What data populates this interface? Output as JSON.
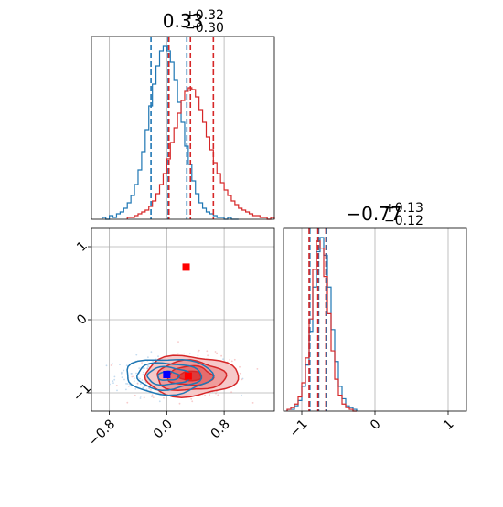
{
  "chart_data": [
    {
      "panel": "hist-param-1",
      "type": "histogram",
      "title": {
        "value": "0.33",
        "upper": "+0.32",
        "lower": "−0.30"
      },
      "xlim": [
        -1.05,
        1.5
      ],
      "x_ticks": [],
      "y_ticks": [],
      "grid": true,
      "series": [
        {
          "color": "#1f77b4",
          "bin_edges": [
            -0.9,
            -0.85,
            -0.8,
            -0.75,
            -0.7,
            -0.65,
            -0.6,
            -0.55,
            -0.5,
            -0.45,
            -0.4,
            -0.35,
            -0.3,
            -0.25,
            -0.2,
            -0.15,
            -0.1,
            -0.05,
            0.0,
            0.05,
            0.1,
            0.15,
            0.2,
            0.25,
            0.3,
            0.35,
            0.4,
            0.45,
            0.5,
            0.55,
            0.6,
            0.65,
            0.7,
            0.75,
            0.8,
            0.85,
            0.9,
            0.95,
            1.0
          ],
          "counts": [
            1,
            0,
            2,
            1,
            3,
            4,
            6,
            9,
            13,
            19,
            27,
            37,
            49,
            62,
            74,
            84,
            92,
            95,
            92,
            86,
            76,
            64,
            53,
            40,
            30,
            21,
            14,
            9,
            6,
            4,
            3,
            2,
            1,
            1,
            0,
            1,
            0,
            0
          ],
          "quantiles": [
            -0.22,
            0.02,
            0.28
          ]
        },
        {
          "color": "#d62728",
          "bin_edges": [
            -0.55,
            -0.5,
            -0.45,
            -0.4,
            -0.35,
            -0.3,
            -0.25,
            -0.2,
            -0.15,
            -0.1,
            -0.05,
            0.0,
            0.05,
            0.1,
            0.15,
            0.2,
            0.25,
            0.3,
            0.35,
            0.4,
            0.45,
            0.5,
            0.55,
            0.6,
            0.65,
            0.7,
            0.75,
            0.8,
            0.85,
            0.9,
            0.95,
            1.0,
            1.05,
            1.1,
            1.15,
            1.2,
            1.25,
            1.3,
            1.35,
            1.4,
            1.45,
            1.5
          ],
          "counts": [
            1,
            1,
            2,
            3,
            4,
            5,
            7,
            10,
            14,
            19,
            25,
            33,
            42,
            50,
            58,
            65,
            70,
            72,
            71,
            67,
            60,
            53,
            45,
            38,
            31,
            25,
            20,
            16,
            13,
            10,
            8,
            6,
            5,
            4,
            3,
            2,
            2,
            1,
            1,
            0,
            1
          ],
          "quantiles": [
            0.03,
            0.33,
            0.65
          ]
        }
      ]
    },
    {
      "panel": "contour-param-1-vs-param-2",
      "type": "scatter",
      "xlim": [
        -1.05,
        1.5
      ],
      "ylim": [
        -1.25,
        1.25
      ],
      "x_ticks": [
        "−0.8",
        "0.0",
        "0.8"
      ],
      "x_tick_values": [
        -0.8,
        0.0,
        0.8
      ],
      "y_ticks": [
        "−1",
        "0",
        "1"
      ],
      "y_tick_values": [
        -1,
        0,
        1
      ],
      "grid": true,
      "series": [
        {
          "color": "#1f77b4",
          "contour_center": [
            0.02,
            -0.77
          ],
          "contour_sigma": [
            0.3,
            0.12
          ],
          "truth_marker": {
            "x": 0.0,
            "y": -0.75,
            "color": "#0000ff"
          }
        },
        {
          "color": "#d62728",
          "contour_center": [
            0.33,
            -0.77
          ],
          "contour_sigma": [
            0.31,
            0.13
          ],
          "truth_marker": {
            "x": 0.3,
            "y": -0.77,
            "color": "#ff0000"
          },
          "extra_marker": {
            "x": 0.27,
            "y": 0.72,
            "color": "#ff0000"
          }
        }
      ]
    },
    {
      "panel": "hist-param-2",
      "type": "histogram",
      "title": {
        "value": "−0.77",
        "upper": "+0.13",
        "lower": "−0.12"
      },
      "xlim": [
        -1.25,
        1.25
      ],
      "x_ticks": [
        "−1",
        "0",
        "1"
      ],
      "x_tick_values": [
        -1,
        0,
        1
      ],
      "y_ticks": [],
      "grid": true,
      "series": [
        {
          "color": "#1f77b4",
          "bin_edges": [
            -1.2,
            -1.15,
            -1.1,
            -1.05,
            -1.0,
            -0.95,
            -0.9,
            -0.85,
            -0.8,
            -0.75,
            -0.7,
            -0.65,
            -0.6,
            -0.55,
            -0.5,
            -0.45,
            -0.4,
            -0.35,
            -0.3,
            -0.25
          ],
          "counts": [
            1,
            1,
            3,
            6,
            14,
            26,
            45,
            70,
            90,
            98,
            88,
            70,
            46,
            28,
            14,
            7,
            3,
            2,
            1
          ],
          "quantiles": [
            -0.89,
            -0.77,
            -0.66
          ]
        },
        {
          "color": "#d62728",
          "bin_edges": [
            -1.2,
            -1.15,
            -1.1,
            -1.05,
            -1.0,
            -0.95,
            -0.9,
            -0.85,
            -0.8,
            -0.75,
            -0.7,
            -0.65,
            -0.6,
            -0.55,
            -0.5,
            -0.45,
            -0.4,
            -0.35,
            -0.3,
            -0.25
          ],
          "counts": [
            1,
            2,
            4,
            8,
            16,
            30,
            52,
            80,
            96,
            92,
            76,
            55,
            34,
            18,
            9,
            4,
            2,
            1,
            0
          ],
          "quantiles": [
            -0.9,
            -0.78,
            -0.67
          ]
        }
      ]
    }
  ]
}
